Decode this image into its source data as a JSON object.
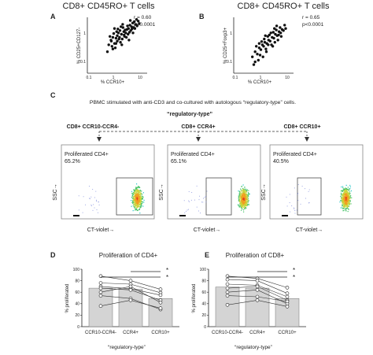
{
  "panels": {
    "A": {
      "label": "A",
      "title": "CD8+ CD45RO+ T cells",
      "ylabel": "% CD25+CD127-",
      "xlabel": "% CCR10+",
      "stat_r": "r = 0.60",
      "stat_p": "p<0.0001",
      "xticks": [
        "0.1",
        "1",
        "10"
      ],
      "yticks": [
        "0.1",
        "1"
      ]
    },
    "B": {
      "label": "B",
      "title": "CD8+ CD45RO+ T cells",
      "ylabel": "% CD25+Foxp3+",
      "xlabel": "% CCR10+",
      "stat_r": "r = 0.65",
      "stat_p": "p<0.0001",
      "xticks": [
        "0.1",
        "1",
        "10"
      ],
      "yticks": [
        "0.1",
        "1"
      ]
    },
    "C": {
      "label": "C",
      "description": "PBMC stimulated with anti-CD3 and co-cultured with autologous “regulatory-type” cells.",
      "regulatory_type": "“regulatory-type”",
      "groups": [
        "CD8+ CCR10-CCR4-",
        "CD8+ CCR4+",
        "CD8+ CCR10+"
      ],
      "flow": [
        {
          "label": "Proliferated CD4+",
          "percent": "65.2%"
        },
        {
          "label": "Proliferated CD4+",
          "percent": "65.1%"
        },
        {
          "label": "Proliferated CD4+",
          "percent": "40.5%"
        }
      ],
      "ylabel": "SSC",
      "xlabel": "CT-violet"
    },
    "D": {
      "label": "D",
      "title": "Proliferation of CD4+",
      "ylabel": "% proliferated",
      "categories": [
        "CCR10-CCR4-",
        "CCR4+",
        "CCR10+"
      ],
      "xgroup": "“regulatory-type”",
      "sig": [
        "*",
        "*"
      ],
      "yticks": [
        "0",
        "20",
        "40",
        "60",
        "80",
        "100"
      ]
    },
    "E": {
      "label": "E",
      "title": "Proliferation of CD8+",
      "ylabel": "% proliferated",
      "categories": [
        "CCR10-CCR4-",
        "CCR4+",
        "CCR10+"
      ],
      "xgroup": "“regulatory-type”",
      "sig": [
        "*",
        "*"
      ],
      "yticks": [
        "0",
        "20",
        "40",
        "60",
        "80",
        "100"
      ]
    }
  },
  "chart_data": [
    {
      "type": "scatter",
      "title": "CD8+ CD45RO+ T cells",
      "xlabel": "% CCR10+",
      "ylabel": "% CD25+CD127-",
      "xscale": "log",
      "yscale": "log",
      "xlim": [
        0.1,
        10
      ],
      "ylim": [
        0.1,
        3
      ],
      "points": [
        [
          0.5,
          0.55
        ],
        [
          0.62,
          0.7
        ],
        [
          0.8,
          0.6
        ],
        [
          0.7,
          0.9
        ],
        [
          0.9,
          0.85
        ],
        [
          1.0,
          1.0
        ],
        [
          1.2,
          0.9
        ],
        [
          1.1,
          1.2
        ],
        [
          1.4,
          1.1
        ],
        [
          1.5,
          0.8
        ],
        [
          1.7,
          1.3
        ],
        [
          2.0,
          1.2
        ],
        [
          2.2,
          1.5
        ],
        [
          1.8,
          0.95
        ],
        [
          2.5,
          1.6
        ],
        [
          3.0,
          1.4
        ],
        [
          3.2,
          1.8
        ],
        [
          2.8,
          2.0
        ],
        [
          3.8,
          1.7
        ],
        [
          4.5,
          2.1
        ],
        [
          5.0,
          1.9
        ],
        [
          0.85,
          0.45
        ],
        [
          1.3,
          0.65
        ],
        [
          0.55,
          0.95
        ],
        [
          1.6,
          1.7
        ],
        [
          2.4,
          1.1
        ],
        [
          3.5,
          2.3
        ],
        [
          6.0,
          2.2
        ],
        [
          1.0,
          0.7
        ],
        [
          1.9,
          1.45
        ],
        [
          0.75,
          1.15
        ],
        [
          1.25,
          1.4
        ],
        [
          2.7,
          1.25
        ],
        [
          4.0,
          2.5
        ],
        [
          0.95,
          1.3
        ],
        [
          1.45,
          0.55
        ],
        [
          2.1,
          0.9
        ],
        [
          0.65,
          0.5
        ],
        [
          3.3,
          1.55
        ],
        [
          5.5,
          2.6
        ],
        [
          1.15,
          0.8
        ],
        [
          2.3,
          1.9
        ],
        [
          1.75,
          1.05
        ],
        [
          0.6,
          0.75
        ],
        [
          4.2,
          1.6
        ],
        [
          0.45,
          0.35
        ],
        [
          0.8,
          1.6
        ],
        [
          2.9,
          2.7
        ],
        [
          1.05,
          1.55
        ],
        [
          3.6,
          1.2
        ],
        [
          0.7,
          0.42
        ],
        [
          1.35,
          1.8
        ],
        [
          2.6,
          0.75
        ],
        [
          1.55,
          2.1
        ],
        [
          4.8,
          2.9
        ],
        [
          0.9,
          0.6
        ]
      ]
    },
    {
      "type": "scatter",
      "title": "CD8+ CD45RO+ T cells",
      "xlabel": "% CCR10+",
      "ylabel": "% CD25+Foxp3+",
      "xscale": "log",
      "yscale": "log",
      "xlim": [
        0.1,
        10
      ],
      "ylim": [
        0.1,
        3
      ],
      "points": [
        [
          0.4,
          0.25
        ],
        [
          0.5,
          0.35
        ],
        [
          0.6,
          0.3
        ],
        [
          0.7,
          0.45
        ],
        [
          0.8,
          0.4
        ],
        [
          0.9,
          0.55
        ],
        [
          1.0,
          0.5
        ],
        [
          1.1,
          0.65
        ],
        [
          1.3,
          0.6
        ],
        [
          1.5,
          0.75
        ],
        [
          1.7,
          0.7
        ],
        [
          2.0,
          0.9
        ],
        [
          2.3,
          0.85
        ],
        [
          2.6,
          1.1
        ],
        [
          3.0,
          1.0
        ],
        [
          3.5,
          1.3
        ],
        [
          4.0,
          1.2
        ],
        [
          4.5,
          1.5
        ],
        [
          5.0,
          1.4
        ],
        [
          0.55,
          0.5
        ],
        [
          0.75,
          0.28
        ],
        [
          1.2,
          0.42
        ],
        [
          1.4,
          0.95
        ],
        [
          1.9,
          0.55
        ],
        [
          2.8,
          1.45
        ],
        [
          0.65,
          0.2
        ],
        [
          1.05,
          0.8
        ],
        [
          2.2,
          1.25
        ],
        [
          3.2,
          0.75
        ],
        [
          0.45,
          0.15
        ],
        [
          1.6,
          1.05
        ],
        [
          2.5,
          0.65
        ],
        [
          3.8,
          1.7
        ],
        [
          6.0,
          1.6
        ],
        [
          0.85,
          0.68
        ],
        [
          1.25,
          0.35
        ],
        [
          1.8,
          1.2
        ],
        [
          2.1,
          0.5
        ],
        [
          0.95,
          0.25
        ],
        [
          4.2,
          0.95
        ],
        [
          0.5,
          0.18
        ],
        [
          1.45,
          0.55
        ],
        [
          2.9,
          1.9
        ],
        [
          5.5,
          2.0
        ],
        [
          0.7,
          0.6
        ],
        [
          3.4,
          1.05
        ],
        [
          1.15,
          1.0
        ],
        [
          2.4,
          1.6
        ]
      ]
    },
    {
      "type": "bar",
      "title": "Proliferation of CD4+",
      "ylabel": "% proliferated",
      "ylim": [
        0,
        100
      ],
      "categories": [
        "CCR10-CCR4-",
        "CCR4+",
        "CCR10+"
      ],
      "values": [
        67,
        65,
        49
      ],
      "series": [
        {
          "values": [
            88,
            80,
            65
          ]
        },
        {
          "values": [
            76,
            74,
            59
          ]
        },
        {
          "values": [
            70,
            66,
            55
          ]
        },
        {
          "values": [
            67,
            64,
            46
          ]
        },
        {
          "values": [
            60,
            70,
            42
          ]
        },
        {
          "values": [
            54,
            49,
            30
          ]
        },
        {
          "values": [
            36,
            46,
            32
          ]
        }
      ]
    },
    {
      "type": "bar",
      "title": "Proliferation of CD8+",
      "ylabel": "% proliferated",
      "ylim": [
        0,
        100
      ],
      "categories": [
        "CCR10-CCR4-",
        "CCR4+",
        "CCR10+"
      ],
      "values": [
        69,
        67,
        49
      ],
      "series": [
        {
          "values": [
            88,
            84,
            68
          ]
        },
        {
          "values": [
            82,
            80,
            58
          ]
        },
        {
          "values": [
            74,
            72,
            52
          ]
        },
        {
          "values": [
            67,
            70,
            46
          ]
        },
        {
          "values": [
            60,
            64,
            40
          ]
        },
        {
          "values": [
            54,
            52,
            44
          ]
        },
        {
          "values": [
            38,
            46,
            35
          ]
        }
      ]
    }
  ]
}
